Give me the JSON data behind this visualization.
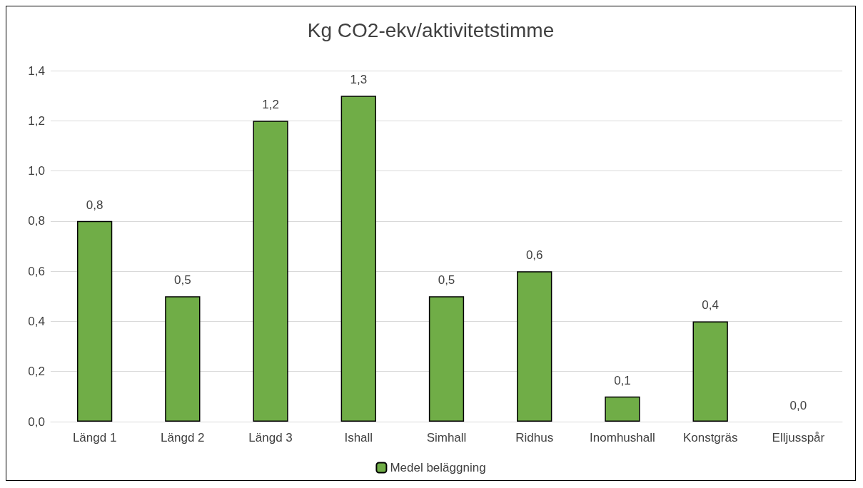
{
  "chart_data": {
    "type": "bar",
    "title": "Kg CO2-ekv/aktivitetstimme",
    "categories": [
      "Längd 1",
      "Längd 2",
      "Längd 3",
      "Ishall",
      "Simhall",
      "Ridhus",
      "Inomhushall",
      "Konstgräs",
      "Elljusspår"
    ],
    "series": [
      {
        "name": "Medel beläggning",
        "color": "#70ad47",
        "values": [
          0.8,
          0.5,
          1.2,
          1.3,
          0.5,
          0.6,
          0.1,
          0.4,
          0.0
        ],
        "value_labels": [
          "0,8",
          "0,5",
          "1,2",
          "1,3",
          "0,5",
          "0,6",
          "0,1",
          "0,4",
          "0,0"
        ]
      }
    ],
    "ylim": [
      0,
      1.4
    ],
    "yticks": [
      {
        "value": 0,
        "label": "0,0"
      },
      {
        "value": 0.2,
        "label": "0,2"
      },
      {
        "value": 0.4,
        "label": "0,4"
      },
      {
        "value": 0.6,
        "label": "0,6"
      },
      {
        "value": 0.8,
        "label": "0,8"
      },
      {
        "value": 1.0,
        "label": "1,0"
      },
      {
        "value": 1.2,
        "label": "1,2"
      },
      {
        "value": 1.4,
        "label": "1,4"
      }
    ],
    "grid": "y",
    "legend": "bottom"
  }
}
